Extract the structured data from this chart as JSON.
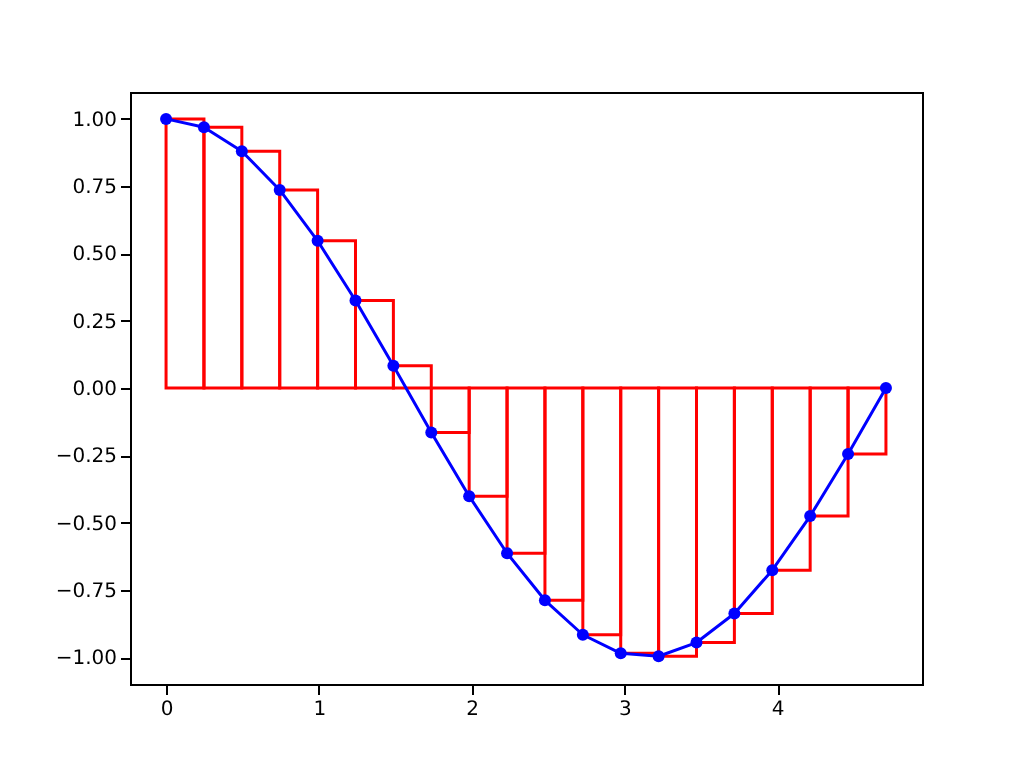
{
  "chart_data": {
    "type": "line",
    "x": [
      0,
      0.248,
      0.496,
      0.744,
      0.992,
      1.24,
      1.488,
      1.736,
      1.984,
      2.232,
      2.48,
      2.728,
      2.976,
      3.224,
      3.472,
      3.72,
      3.968,
      4.216,
      4.464,
      4.712
    ],
    "series": [
      {
        "type": "bar",
        "color": "#ff0000",
        "x": [
          0.124,
          0.372,
          0.62,
          0.868,
          1.116,
          1.364,
          1.612,
          1.86,
          2.108,
          2.356,
          2.604,
          2.852,
          3.1,
          3.348,
          3.596,
          3.844,
          4.092,
          4.34,
          4.588
        ],
        "values": [
          1,
          0.969,
          0.88,
          0.736,
          0.547,
          0.325,
          0.083,
          -0.165,
          -0.402,
          -0.614,
          -0.789,
          -0.917,
          -0.986,
          -0.997,
          -0.946,
          -0.838,
          -0.677,
          -0.476,
          -0.245
        ]
      },
      {
        "color": "#0000ff",
        "marker": "circle",
        "values": [
          1,
          0.969,
          0.88,
          0.736,
          0.547,
          0.325,
          0.083,
          -0.165,
          -0.402,
          -0.614,
          -0.789,
          -0.917,
          -0.986,
          -0.997,
          -0.946,
          -0.838,
          -0.677,
          -0.476,
          -0.245,
          0
        ]
      }
    ],
    "xlim": [
      -0.236,
      4.948
    ],
    "xticks": [
      0,
      1,
      2,
      3,
      4
    ],
    "ylim": [
      -1.1,
      1.1
    ],
    "yticks": [
      {
        "value": -1,
        "label": "−1.00"
      },
      {
        "value": -0.75,
        "label": "−0.75"
      },
      {
        "value": -0.5,
        "label": "−0.50"
      },
      {
        "value": -0.25,
        "label": "−0.25"
      },
      {
        "value": 0,
        "label": "0.00"
      },
      {
        "value": 0.25,
        "label": "0.25"
      },
      {
        "value": 0.5,
        "label": "0.50"
      },
      {
        "value": 0.75,
        "label": "0.75"
      },
      {
        "value": 1,
        "label": "1.00"
      }
    ],
    "grid": false
  }
}
